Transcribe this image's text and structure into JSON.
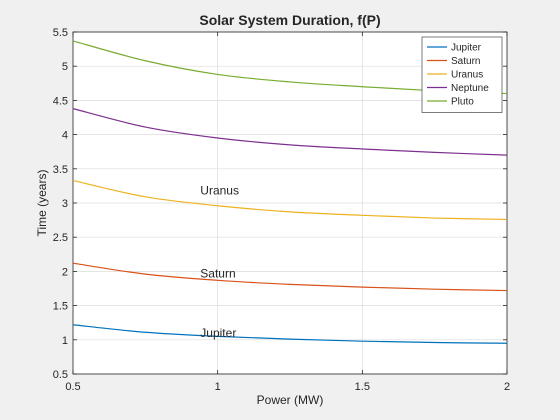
{
  "chart_data": {
    "type": "line",
    "title": "Solar System Duration, f(P)",
    "xlabel": "Power (MW)",
    "ylabel": "Time (years)",
    "xlim": [
      0.5,
      2
    ],
    "ylim": [
      0.5,
      5.5
    ],
    "xticks": [
      0.5,
      1,
      1.5,
      2
    ],
    "xtick_labels": [
      "0.5",
      "1",
      "1.5",
      "2"
    ],
    "yticks": [
      0.5,
      1,
      1.5,
      2,
      2.5,
      3,
      3.5,
      4,
      4.5,
      5,
      5.5
    ],
    "ytick_labels": [
      "0.5",
      "1",
      "1.5",
      "2",
      "2.5",
      "3",
      "3.5",
      "4",
      "4.5",
      "5",
      "5.5"
    ],
    "grid": true,
    "legend": "top-right",
    "x": [
      0.5,
      0.75,
      1.0,
      1.25,
      1.5,
      1.75,
      2.0
    ],
    "series": [
      {
        "name": "Jupiter",
        "color": "#0072bd",
        "values": [
          1.22,
          1.11,
          1.05,
          1.01,
          0.98,
          0.96,
          0.95
        ]
      },
      {
        "name": "Saturn",
        "color": "#d95319",
        "values": [
          2.12,
          1.96,
          1.87,
          1.81,
          1.77,
          1.74,
          1.72
        ]
      },
      {
        "name": "Uranus",
        "color": "#edb120",
        "values": [
          3.33,
          3.09,
          2.96,
          2.87,
          2.82,
          2.78,
          2.76
        ]
      },
      {
        "name": "Neptune",
        "color": "#7e2f8e",
        "values": [
          4.38,
          4.11,
          3.95,
          3.85,
          3.79,
          3.74,
          3.7
        ]
      },
      {
        "name": "Pluto",
        "color": "#77ac30",
        "values": [
          5.37,
          5.08,
          4.88,
          4.77,
          4.7,
          4.64,
          4.6
        ]
      }
    ],
    "annotations": [
      {
        "text": "Uranus",
        "x": 0.94,
        "y": 3.18
      },
      {
        "text": "Saturn",
        "x": 0.94,
        "y": 1.97
      },
      {
        "text": "Jupiter",
        "x": 0.94,
        "y": 1.1
      }
    ]
  }
}
